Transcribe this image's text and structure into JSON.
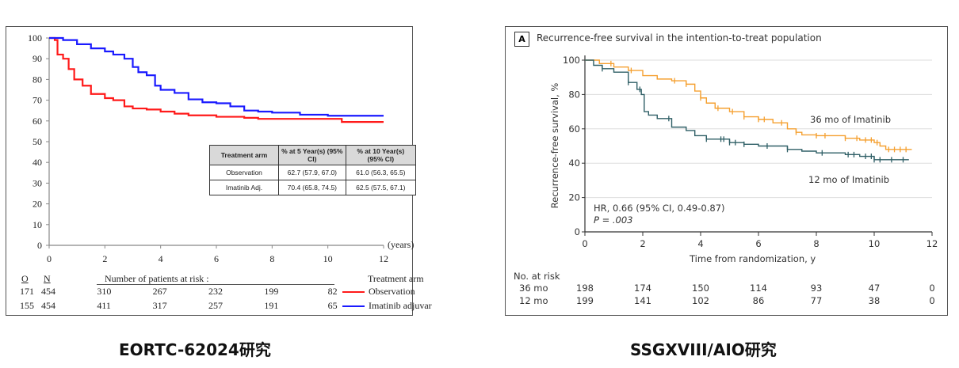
{
  "captions": {
    "left": "EORTC-62024研究",
    "right": "SSGXVIII/AIO研究"
  },
  "chart_data": [
    {
      "type": "line",
      "subtype": "kaplan-meier",
      "xlabel": "(years)",
      "ylabel": "",
      "xlim": [
        0,
        12
      ],
      "ylim": [
        0,
        100
      ],
      "xticks": [
        0,
        2,
        4,
        6,
        8,
        10,
        12
      ],
      "yticks": [
        0,
        10,
        20,
        30,
        40,
        50,
        60,
        70,
        80,
        90,
        100
      ],
      "grid": false,
      "legend": {
        "title": "Treatment arm",
        "position": "bottom-right"
      },
      "colors": {
        "Observation": "#ff1a1a",
        "Imatinib adjuvar": "#1a1aff"
      },
      "series": [
        {
          "name": "Observation",
          "color": "#ff1a1a",
          "x": [
            0,
            0.2,
            0.3,
            0.5,
            0.7,
            0.9,
            1.2,
            1.5,
            2,
            2.3,
            2.7,
            3,
            3.5,
            4,
            4.5,
            5,
            6,
            7,
            7.5,
            10.5,
            10.5,
            12
          ],
          "y": [
            100,
            99,
            92,
            90,
            85,
            80,
            77,
            73,
            71,
            70,
            67,
            66,
            65.5,
            64.5,
            63.5,
            62.7,
            62,
            61.5,
            61,
            61,
            59.5,
            59.5
          ]
        },
        {
          "name": "Imatinib adjuvar",
          "color": "#1a1aff",
          "x": [
            0,
            0.5,
            1,
            1.5,
            2,
            2.3,
            2.7,
            3,
            3.2,
            3.5,
            3.8,
            4,
            4.5,
            5,
            5.5,
            6,
            6.5,
            7,
            7.5,
            8,
            9,
            10,
            12
          ],
          "y": [
            100,
            99,
            97,
            95,
            93.5,
            92,
            90,
            86,
            83.5,
            82,
            77,
            75,
            73.5,
            70.4,
            69,
            68.5,
            67,
            65,
            64.5,
            64,
            63,
            62.5,
            62.5
          ]
        }
      ],
      "summary_table": {
        "headers": [
          "Treatment arm",
          "% at 5 Year(s) (95% CI)",
          "% at 10 Year(s) (95% CI)"
        ],
        "rows": [
          [
            "Observation",
            "62.7 (57.9, 67.0)",
            "61.0 (56.3, 65.5)"
          ],
          [
            "Imatinib Adj.",
            "70.4 (65.8, 74.5)",
            "62.5 (57.5, 67.1)"
          ]
        ]
      },
      "risk_table": {
        "title": "Number of patients at risk :",
        "col_o": "O",
        "col_n": "N",
        "rows": [
          {
            "o": "171",
            "n": "454",
            "values": [
              "310",
              "267",
              "232",
              "199",
              "82"
            ],
            "arm": "Observation"
          },
          {
            "o": "155",
            "n": "454",
            "values": [
              "411",
              "317",
              "257",
              "191",
              "65"
            ],
            "arm": "Imatinib adjuvar"
          }
        ]
      }
    },
    {
      "type": "line",
      "subtype": "kaplan-meier",
      "panel_label": "A",
      "title": "Recurrence-free survival in the intention-to-treat population",
      "xlabel": "Time from randomization, y",
      "ylabel": "Recurrence-free survival, %",
      "xlim": [
        0,
        12
      ],
      "ylim": [
        0,
        100
      ],
      "xticks": [
        0,
        2,
        4,
        6,
        8,
        10,
        12
      ],
      "yticks": [
        0,
        20,
        40,
        60,
        80,
        100
      ],
      "grid": true,
      "annotations": [
        "HR, 0.66 (95% CI, 0.49-0.87)",
        "P = .003"
      ],
      "series": [
        {
          "name": "36 mo of Imatinib",
          "color": "#f5a030",
          "x": [
            0,
            0.5,
            1,
            1.5,
            2,
            2.5,
            3,
            3.5,
            3.8,
            4,
            4.2,
            4.5,
            5,
            5.5,
            6,
            6.5,
            7,
            7.3,
            7.5,
            8,
            9,
            9.5,
            10,
            10.2,
            10.4,
            11.3
          ],
          "y": [
            100,
            98,
            96,
            94,
            91,
            89,
            88,
            86,
            82,
            78,
            75,
            72,
            70,
            67,
            65.5,
            63.5,
            60,
            58,
            56.5,
            56,
            54.5,
            53.5,
            52,
            50,
            48,
            48
          ],
          "censored_x": [
            0.9,
            1.6,
            3.1,
            3.5,
            4.0,
            4.6,
            5.1,
            5.5,
            6.0,
            6.2,
            6.8,
            7.3,
            8.0,
            8.3,
            9.0,
            9.4,
            9.7,
            9.9,
            10.1,
            10.5,
            10.7,
            10.9,
            11.1
          ]
        },
        {
          "name": "12 mo of Imatinib",
          "color": "#2f5f66",
          "x": [
            0,
            0.3,
            0.6,
            1,
            1.5,
            1.8,
            1.95,
            2.05,
            2.2,
            2.5,
            3,
            3.5,
            3.8,
            4.2,
            5,
            5.5,
            6,
            7,
            7.5,
            8,
            9,
            9.5,
            10,
            11.2
          ],
          "y": [
            100,
            97,
            95,
            93,
            87,
            83,
            80,
            70,
            68,
            66,
            61,
            59,
            56,
            54,
            52,
            51,
            50,
            48,
            47,
            46,
            45,
            44,
            42,
            42
          ],
          "censored_x": [
            0.6,
            1.5,
            1.9,
            2.9,
            4.2,
            4.7,
            4.8,
            5.0,
            5.2,
            5.5,
            6.3,
            7.0,
            8.2,
            9.1,
            9.3,
            9.7,
            9.9,
            10.0,
            10.2,
            10.6,
            11.0
          ]
        }
      ],
      "risk_table": {
        "title": "No. at risk",
        "rows": [
          {
            "label": "36 mo",
            "values": [
              "198",
              "174",
              "150",
              "114",
              "93",
              "47",
              "0"
            ]
          },
          {
            "label": "12 mo",
            "values": [
              "199",
              "141",
              "102",
              "86",
              "77",
              "38",
              "0"
            ]
          }
        ]
      }
    }
  ]
}
